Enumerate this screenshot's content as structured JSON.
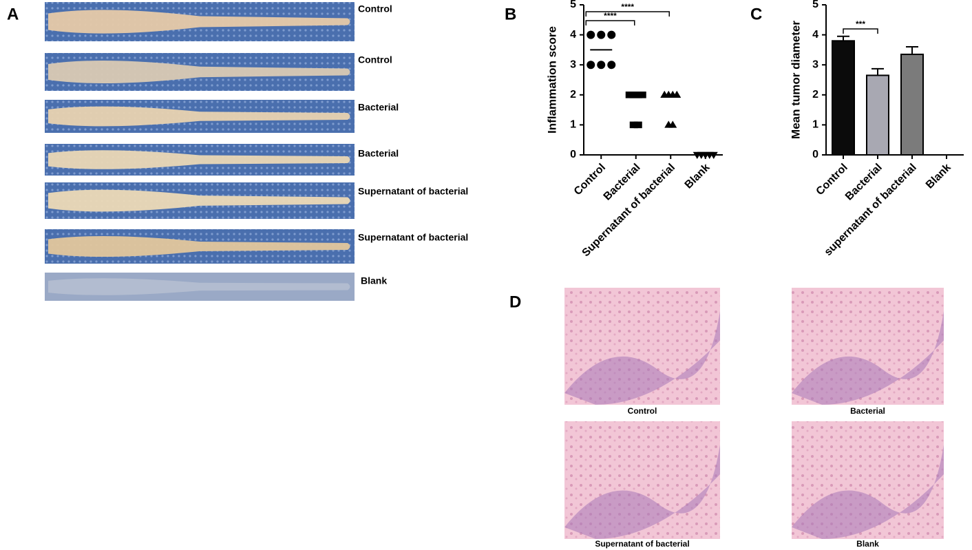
{
  "panel_labels": [
    "A",
    "B",
    "C",
    "D"
  ],
  "gross_photos": {
    "labels": [
      "Control",
      "Control",
      "Bacterial",
      "Bacterial",
      "Supernatant of  bacterial",
      "Supernatant of  bacterial",
      "Blank"
    ]
  },
  "histology": {
    "captions": [
      "Control",
      "Bacterial",
      "Supernatant of  bacterial",
      "Blank"
    ]
  },
  "chart_data": [
    {
      "type": "dot",
      "ylabel": "Inflammation score",
      "categories": [
        "Control",
        "Bacterial",
        "Supernatant of bacterial",
        "Blank"
      ],
      "points": [
        [
          4,
          4,
          4,
          3,
          3,
          3
        ],
        [
          2,
          2,
          2,
          2,
          1,
          1
        ],
        [
          2,
          2,
          2,
          2,
          1,
          1
        ],
        [
          0,
          0,
          0,
          0,
          0
        ]
      ],
      "means": [
        3.5,
        null,
        null,
        null
      ],
      "markers": [
        "circle",
        "square",
        "triangle",
        "triangle-down"
      ],
      "color": "#000000",
      "ylim": [
        0,
        5
      ],
      "yticks": [
        0,
        1,
        2,
        3,
        4,
        5
      ],
      "brackets": [
        {
          "groups": [
            "Control",
            "Supernatant of bacterial"
          ],
          "label": "****"
        },
        {
          "groups": [
            "Control",
            "Bacterial"
          ],
          "label": "****"
        }
      ]
    },
    {
      "type": "bar",
      "ylabel": "Mean tumor diameter",
      "categories": [
        "Control",
        "Bacterial",
        "supernatant of bacterial",
        "Blank"
      ],
      "values": [
        3.8,
        2.65,
        3.35,
        null
      ],
      "errors": [
        0.15,
        0.22,
        0.25,
        null
      ],
      "colors": [
        "#0b0b0b",
        "#a8a8b2",
        "#7b7b7b",
        "#cccccc"
      ],
      "ylim": [
        0,
        5
      ],
      "yticks": [
        0,
        1,
        2,
        3,
        4,
        5
      ],
      "brackets": [
        {
          "groups": [
            "Control",
            "Bacterial"
          ],
          "label": "***"
        }
      ]
    }
  ]
}
